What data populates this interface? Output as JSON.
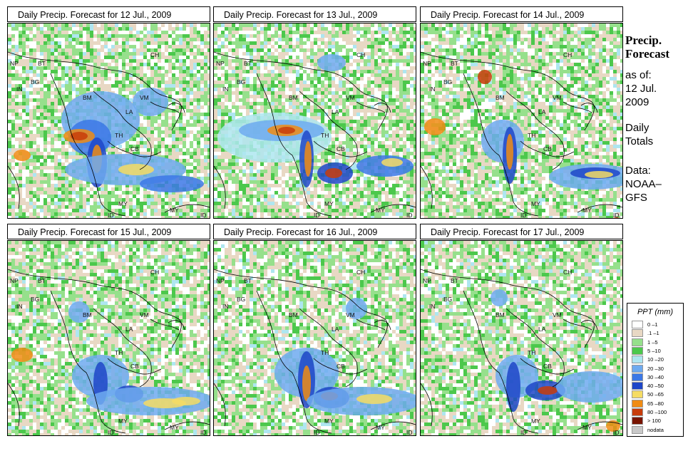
{
  "panels": [
    {
      "title": "Daily Precip. Forecast for  12 Jul., 2009"
    },
    {
      "title": "Daily Precip. Forecast for  13 Jul., 2009"
    },
    {
      "title": "Daily Precip. Forecast for  14 Jul., 2009"
    },
    {
      "title": "Daily Precip. Forecast for  15 Jul., 2009"
    },
    {
      "title": "Daily Precip. Forecast for  16 Jul., 2009"
    },
    {
      "title": "Daily Precip. Forecast for  17 Jul., 2009"
    }
  ],
  "map_labels": {
    "np": "NP",
    "bt": "BT",
    "in": "IN",
    "bg": "BG",
    "ch": "CH",
    "bm": "BM",
    "vm": "VM",
    "la": "LA",
    "th": "TH",
    "cb": "CB",
    "my": "MY",
    "my2": "MY",
    "id": "ID",
    "id2": "ID"
  },
  "side": {
    "title_line1": "Precip.",
    "title_line2": "Forecast",
    "asof": "as of:",
    "date1": "12 Jul.",
    "date2": "2009",
    "daily1": "Daily",
    "daily2": "Totals",
    "data1": "Data:",
    "data2": "NOAA–",
    "data3": "GFS"
  },
  "legend": {
    "title": "PPT (mm)",
    "items": [
      {
        "label": "0 –1",
        "color": "#ffffff"
      },
      {
        "label": ".1 –1",
        "color": "#e8d8c4"
      },
      {
        "label": "1 –5",
        "color": "#96e08c"
      },
      {
        "label": "5 –10",
        "color": "#4cc84c"
      },
      {
        "label": "10 –20",
        "color": "#aee6f0"
      },
      {
        "label": "20 –30",
        "color": "#6eaaf0"
      },
      {
        "label": "30 –40",
        "color": "#3c78e6"
      },
      {
        "label": "40 –50",
        "color": "#1e46c8"
      },
      {
        "label": "50 –65",
        "color": "#f5dc64"
      },
      {
        "label": "65 –80",
        "color": "#f08c14"
      },
      {
        "label": "80 –100",
        "color": "#c83c0a"
      },
      {
        "label": "> 100",
        "color": "#781400"
      },
      {
        "label": "nodata",
        "color": "#c8c8c8"
      }
    ]
  }
}
